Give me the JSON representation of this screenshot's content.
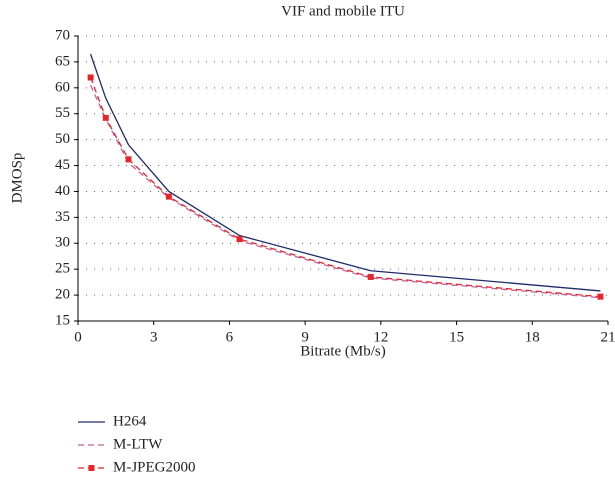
{
  "chart_data": {
    "type": "line",
    "title": "VIF and mobile ITU",
    "xlabel": "Bitrate (Mb/s)",
    "ylabel": "DMOSp",
    "x": [
      0.5,
      1.1,
      2.0,
      3.6,
      6.4,
      11.6,
      20.7
    ],
    "series": [
      {
        "name": "H264",
        "color": "#1f2a6b",
        "dash": "solid",
        "marker": "none",
        "values": [
          66.5,
          58,
          49,
          40,
          31.5,
          24.7,
          20.8
        ]
      },
      {
        "name": "M-LTW",
        "color": "#c060a0",
        "dash": "dashed",
        "marker": "none",
        "values": [
          60.5,
          54,
          45.5,
          38.8,
          30.5,
          23.3,
          19.5
        ]
      },
      {
        "name": "M-JPEG2000",
        "color": "#e8242b",
        "dash": "dashed",
        "marker": "square",
        "values": [
          62,
          54.2,
          46.2,
          39,
          30.8,
          23.5,
          19.7
        ]
      }
    ],
    "xlim": [
      0,
      21
    ],
    "xticks": [
      0,
      3,
      6,
      9,
      12,
      15,
      18,
      21
    ],
    "ylim": [
      15,
      70
    ],
    "yticks": [
      15,
      20,
      25,
      30,
      35,
      40,
      45,
      50,
      55,
      60,
      65,
      70
    ],
    "grid": true,
    "legend": "bottom-left"
  }
}
